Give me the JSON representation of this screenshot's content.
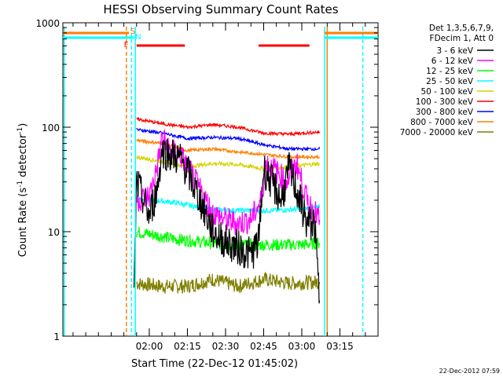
{
  "chart_data": {
    "type": "line",
    "title": "HESSI Observing Summary Count Rates",
    "xlabel": "Start Time (22-Dec-12 01:45:02)",
    "ylabel_main": "Count Rate (s",
    "ylabel_sup1": "-1",
    "ylabel_mid": " detector",
    "ylabel_sup2": "-1",
    "ylabel_end": ")",
    "yscale": "log",
    "ylim": [
      1,
      1000
    ],
    "y_ticks": [
      "1",
      "10",
      "100",
      "1000"
    ],
    "xlim_minutes": [
      -34,
      90
    ],
    "x_ticks": [
      "02:00",
      "02:15",
      "02:30",
      "02:45",
      "03:00",
      "03:15"
    ],
    "x_tick_minutes": [
      0,
      15,
      30,
      45,
      60,
      75
    ],
    "timestamp": "22-Dec-2012 07:59",
    "legend_header": [
      "Det 1,3,5,6,7,9,",
      "FDecim 1, Att 0"
    ],
    "flags": {
      "S": {
        "label": "S",
        "color": "#ff7f00",
        "intervals": [
          [
            -34,
            -8
          ],
          [
            69,
            90
          ]
        ]
      },
      "N": {
        "label": "N",
        "color": "#00ffff",
        "intervals": [
          [
            -34,
            -6
          ],
          [
            69,
            90
          ]
        ]
      },
      "F": {
        "label": "F",
        "color": "#ff0000",
        "intervals": [
          [
            -5,
            14
          ],
          [
            43,
            63
          ]
        ]
      }
    },
    "series": [
      {
        "name": "3 - 6 keV",
        "color": "#000000"
      },
      {
        "name": "6 - 12 keV",
        "color": "#ff00ff"
      },
      {
        "name": "12 - 25 keV",
        "color": "#00ff00"
      },
      {
        "name": "25 - 50 keV",
        "color": "#00ffff"
      },
      {
        "name": "50 - 100 keV",
        "color": "#d4d400"
      },
      {
        "name": "100 - 300 keV",
        "color": "#ff0000"
      },
      {
        "name": "300 - 800 keV",
        "color": "#0000ff"
      },
      {
        "name": "800 - 7000 keV",
        "color": "#ff7f00"
      },
      {
        "name": "7000 - 20000 keV",
        "color": "#7f7f00"
      }
    ],
    "series_points": {
      "3 - 6 keV": [
        [
          -6,
          2.5
        ],
        [
          -5,
          30
        ],
        [
          0,
          14
        ],
        [
          3,
          25
        ],
        [
          5,
          60
        ],
        [
          8,
          55
        ],
        [
          12,
          50
        ],
        [
          15,
          38
        ],
        [
          20,
          20
        ],
        [
          25,
          10
        ],
        [
          30,
          8
        ],
        [
          35,
          7
        ],
        [
          40,
          6
        ],
        [
          43,
          8
        ],
        [
          45,
          40
        ],
        [
          48,
          30
        ],
        [
          52,
          20
        ],
        [
          55,
          40
        ],
        [
          58,
          25
        ],
        [
          62,
          12
        ],
        [
          65,
          12
        ],
        [
          67,
          2.2
        ]
      ],
      "6 - 12 keV": [
        [
          -5,
          20
        ],
        [
          0,
          22
        ],
        [
          3,
          40
        ],
        [
          5,
          80
        ],
        [
          8,
          60
        ],
        [
          12,
          55
        ],
        [
          15,
          42
        ],
        [
          20,
          25
        ],
        [
          25,
          15
        ],
        [
          30,
          13
        ],
        [
          35,
          12
        ],
        [
          40,
          13
        ],
        [
          44,
          20
        ],
        [
          46,
          45
        ],
        [
          50,
          38
        ],
        [
          54,
          30
        ],
        [
          58,
          45
        ],
        [
          62,
          20
        ],
        [
          67,
          13
        ]
      ],
      "12 - 25 keV": [
        [
          -5,
          10
        ],
        [
          5,
          9
        ],
        [
          10,
          8.5
        ],
        [
          20,
          8
        ],
        [
          30,
          7.5
        ],
        [
          40,
          7.5
        ],
        [
          50,
          7.5
        ],
        [
          60,
          7.5
        ],
        [
          67,
          7.8
        ]
      ],
      "25 - 50 keV": [
        [
          -5,
          21
        ],
        [
          10,
          19
        ],
        [
          20,
          17
        ],
        [
          30,
          16
        ],
        [
          40,
          16
        ],
        [
          50,
          16
        ],
        [
          60,
          16.5
        ],
        [
          67,
          17
        ]
      ],
      "50 - 100 keV": [
        [
          -5,
          52
        ],
        [
          5,
          47
        ],
        [
          15,
          42
        ],
        [
          25,
          45
        ],
        [
          35,
          44
        ],
        [
          45,
          40
        ],
        [
          55,
          42
        ],
        [
          67,
          45
        ]
      ],
      "100 - 300 keV": [
        [
          -5,
          120
        ],
        [
          5,
          108
        ],
        [
          15,
          100
        ],
        [
          25,
          106
        ],
        [
          35,
          100
        ],
        [
          45,
          88
        ],
        [
          55,
          86
        ],
        [
          67,
          90
        ]
      ],
      "300 - 800 keV": [
        [
          -5,
          95
        ],
        [
          5,
          88
        ],
        [
          15,
          78
        ],
        [
          25,
          80
        ],
        [
          35,
          78
        ],
        [
          45,
          68
        ],
        [
          55,
          62
        ],
        [
          67,
          62
        ]
      ],
      "800 - 7000 keV": [
        [
          -5,
          75
        ],
        [
          5,
          70
        ],
        [
          15,
          60
        ],
        [
          25,
          62
        ],
        [
          35,
          58
        ],
        [
          45,
          55
        ],
        [
          55,
          52
        ],
        [
          67,
          52
        ]
      ],
      "7000 - 20000 keV": [
        [
          -5,
          3.2
        ],
        [
          5,
          3.0
        ],
        [
          15,
          3.0
        ],
        [
          25,
          3.5
        ],
        [
          35,
          3.0
        ],
        [
          45,
          3.5
        ],
        [
          55,
          3.2
        ],
        [
          67,
          3.3
        ]
      ]
    },
    "vertical_markers": [
      {
        "minute": -9,
        "color": "#ff7f00",
        "style": "dashed"
      },
      {
        "minute": -7,
        "color": "#00ffff",
        "style": "dashed"
      },
      {
        "minute": -5.5,
        "color": "#00ffff",
        "style": "solid"
      },
      {
        "minute": 69,
        "color": "#00ffff",
        "style": "solid"
      },
      {
        "minute": 70,
        "color": "#ff7f00",
        "style": "solid"
      },
      {
        "minute": 84,
        "color": "#00ffff",
        "style": "dashed"
      },
      {
        "minute": -33.5,
        "color": "#00ffff",
        "style": "solid"
      }
    ]
  }
}
